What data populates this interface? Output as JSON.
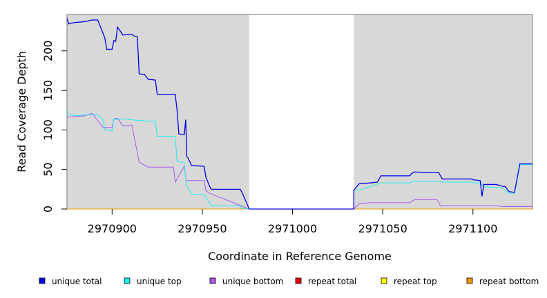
{
  "chart_data": {
    "type": "line",
    "title": "",
    "xlabel": "Coordinate in Reference Genome",
    "ylabel": "Read Coverage Depth",
    "xlim": [
      2970875,
      2971133
    ],
    "ylim": [
      0,
      246
    ],
    "x_ticks": [
      2970900,
      2970950,
      2971000,
      2971050,
      2971100
    ],
    "x_tick_labels": [
      "2970900",
      "2970950",
      "2971000",
      "2971050",
      "2971100"
    ],
    "y_ticks": [
      0,
      50,
      100,
      150,
      200
    ],
    "y_tick_labels": [
      "0",
      "50",
      "100",
      "150",
      "200"
    ],
    "shaded_regions": [
      [
        2970875,
        2970976
      ],
      [
        2971034,
        2971133
      ]
    ],
    "legend_position": "bottom",
    "series": [
      {
        "name": "unique total",
        "color": "#0000ee",
        "points": [
          [
            2970875,
            241
          ],
          [
            2970876,
            234
          ],
          [
            2970877,
            235
          ],
          [
            2970880,
            236
          ],
          [
            2970885,
            237
          ],
          [
            2970889,
            239
          ],
          [
            2970892,
            239
          ],
          [
            2970895,
            222
          ],
          [
            2970896,
            216
          ],
          [
            2970897,
            202
          ],
          [
            2970900,
            202
          ],
          [
            2970901,
            213
          ],
          [
            2970902,
            212
          ],
          [
            2970903,
            230
          ],
          [
            2970906,
            220
          ],
          [
            2970911,
            221
          ],
          [
            2970912,
            219
          ],
          [
            2970914,
            218
          ],
          [
            2970915,
            171
          ],
          [
            2970918,
            170
          ],
          [
            2970920,
            164
          ],
          [
            2970924,
            163
          ],
          [
            2970925,
            145
          ],
          [
            2970935,
            145
          ],
          [
            2970936,
            125
          ],
          [
            2970937,
            95
          ],
          [
            2970940,
            94
          ],
          [
            2970940.8,
            113
          ],
          [
            2970941.4,
            66
          ],
          [
            2970942,
            65
          ],
          [
            2970944,
            55
          ],
          [
            2970951,
            54
          ],
          [
            2970952,
            40
          ],
          [
            2970954,
            29
          ],
          [
            2970955,
            25
          ],
          [
            2970966,
            25
          ],
          [
            2970971,
            25
          ],
          [
            2970972,
            21
          ],
          [
            2970976,
            0
          ],
          [
            2971034,
            0
          ],
          [
            2971034,
            24
          ],
          [
            2971037,
            32
          ],
          [
            2971043,
            33
          ],
          [
            2971047,
            34
          ],
          [
            2971049,
            42
          ],
          [
            2971065,
            42
          ],
          [
            2971066,
            45
          ],
          [
            2971068,
            47
          ],
          [
            2971072,
            46
          ],
          [
            2971081,
            46
          ],
          [
            2971083,
            38
          ],
          [
            2971099,
            38
          ],
          [
            2971100,
            37
          ],
          [
            2971104,
            36
          ],
          [
            2971105,
            16
          ],
          [
            2971106,
            31
          ],
          [
            2971113,
            31
          ],
          [
            2971116,
            29
          ],
          [
            2971118,
            28
          ],
          [
            2971120,
            22
          ],
          [
            2971123,
            21
          ],
          [
            2971126,
            57
          ],
          [
            2971133,
            57
          ]
        ]
      },
      {
        "name": "unique top",
        "color": "#22eeee",
        "points": [
          [
            2970875,
            124
          ],
          [
            2970876,
            119
          ],
          [
            2970880,
            118
          ],
          [
            2970885,
            119
          ],
          [
            2970892,
            119
          ],
          [
            2970895,
            113
          ],
          [
            2970896,
            100
          ],
          [
            2970900,
            99
          ],
          [
            2970901,
            114
          ],
          [
            2970902,
            113
          ],
          [
            2970906,
            114
          ],
          [
            2970911,
            113
          ],
          [
            2970914,
            112
          ],
          [
            2970916,
            112
          ],
          [
            2970920,
            111
          ],
          [
            2970924,
            111
          ],
          [
            2970925,
            92
          ],
          [
            2970935,
            92
          ],
          [
            2970936,
            60
          ],
          [
            2970940,
            59
          ],
          [
            2970941,
            32
          ],
          [
            2970944,
            19
          ],
          [
            2970950,
            18
          ],
          [
            2970951,
            18
          ],
          [
            2970955,
            4
          ],
          [
            2970971,
            4
          ],
          [
            2970972,
            1
          ],
          [
            2970976,
            0
          ],
          [
            2971034,
            0
          ],
          [
            2971034,
            23
          ],
          [
            2971037,
            24
          ],
          [
            2971049,
            33
          ],
          [
            2971065,
            33
          ],
          [
            2971066,
            34
          ],
          [
            2971068,
            35
          ],
          [
            2971081,
            35
          ],
          [
            2971083,
            34
          ],
          [
            2971099,
            34
          ],
          [
            2971100,
            33
          ],
          [
            2971104,
            33
          ],
          [
            2971106,
            28
          ],
          [
            2971116,
            27
          ],
          [
            2971120,
            20
          ],
          [
            2971123,
            19
          ],
          [
            2971126,
            56
          ],
          [
            2971133,
            56
          ]
        ]
      },
      {
        "name": "unique bottom",
        "color": "#aa55ee",
        "points": [
          [
            2970875,
            116
          ],
          [
            2970880,
            117
          ],
          [
            2970885,
            118
          ],
          [
            2970889,
            121
          ],
          [
            2970895,
            103
          ],
          [
            2970897,
            103
          ],
          [
            2970900,
            103
          ],
          [
            2970901,
            114
          ],
          [
            2970903,
            115
          ],
          [
            2970906,
            105
          ],
          [
            2970911,
            106
          ],
          [
            2970915,
            59
          ],
          [
            2970920,
            53
          ],
          [
            2970934,
            53
          ],
          [
            2970935,
            34
          ],
          [
            2970940,
            54
          ],
          [
            2970941,
            36
          ],
          [
            2970951,
            36
          ],
          [
            2970952,
            23
          ],
          [
            2970954,
            20
          ],
          [
            2970976,
            0
          ],
          [
            2971034,
            0
          ],
          [
            2971037,
            7
          ],
          [
            2971043,
            8
          ],
          [
            2971065,
            8
          ],
          [
            2971068,
            12
          ],
          [
            2971080,
            12
          ],
          [
            2971082,
            4
          ],
          [
            2971113,
            4
          ],
          [
            2971117,
            3
          ],
          [
            2971133,
            3
          ]
        ]
      },
      {
        "name": "repeat total",
        "color": "#ee0000",
        "points": [
          [
            2970875,
            0
          ],
          [
            2971133,
            0
          ]
        ]
      },
      {
        "name": "repeat top",
        "color": "#ffff00",
        "points": [
          [
            2970875,
            0
          ],
          [
            2971133,
            0
          ]
        ]
      },
      {
        "name": "repeat bottom",
        "color": "#ee9900",
        "points": [
          [
            2970875,
            0
          ],
          [
            2971133,
            0
          ]
        ]
      }
    ]
  }
}
